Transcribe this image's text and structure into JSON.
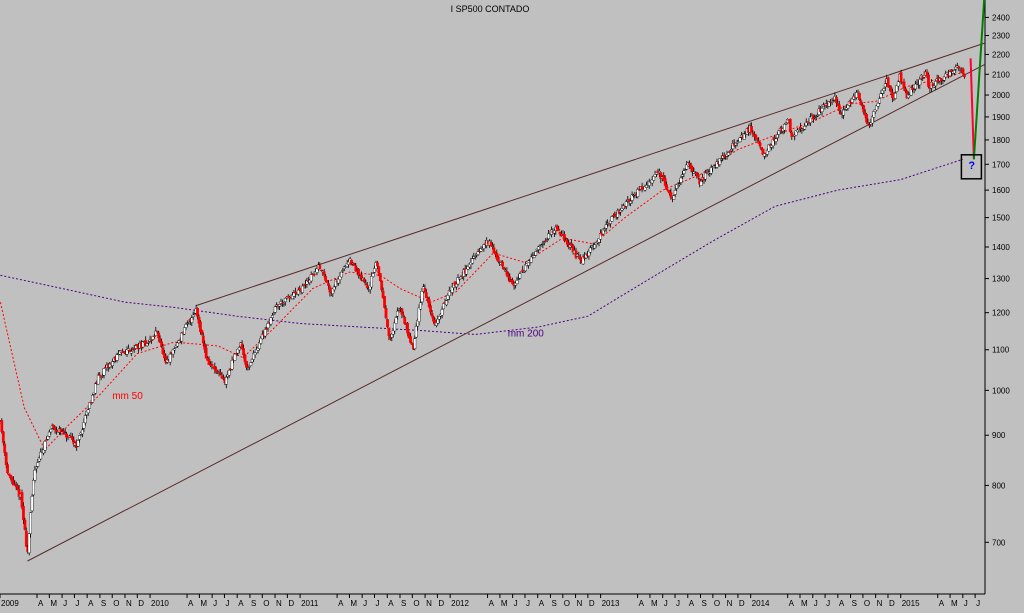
{
  "colors": {
    "background": "#c0c0c0",
    "axis": "#000000",
    "up_candle": "#ffffff",
    "down_candle": "#ff0000",
    "wick": "#000000",
    "trendline": "#5a2a2a",
    "ma50": "#ff0000",
    "ma200": "#4b0082",
    "projection_down": "#ff0033",
    "projection_up": "#008000",
    "question_box": "#000000",
    "question_mark": "#0000ff"
  },
  "chart_data": {
    "type": "candlestick",
    "title": "I SP500 CONTADO",
    "scale": "log",
    "ylim": [
      620,
      2500
    ],
    "x_range": [
      "2009-01",
      "2015-07"
    ],
    "y_ticks": [
      700,
      800,
      900,
      1000,
      1100,
      1200,
      1300,
      1400,
      1500,
      1600,
      1700,
      1800,
      1900,
      2000,
      2100,
      2200,
      2300,
      2400
    ],
    "x_ticks": [
      {
        "date": "2009-01",
        "label": "2009"
      },
      {
        "date": "2009-04",
        "label": "A"
      },
      {
        "date": "2009-05",
        "label": "M"
      },
      {
        "date": "2009-06",
        "label": "J"
      },
      {
        "date": "2009-07",
        "label": "J"
      },
      {
        "date": "2009-08",
        "label": "A"
      },
      {
        "date": "2009-09",
        "label": "S"
      },
      {
        "date": "2009-10",
        "label": "O"
      },
      {
        "date": "2009-11",
        "label": "N"
      },
      {
        "date": "2009-12",
        "label": "D"
      },
      {
        "date": "2010-01",
        "label": "2010"
      },
      {
        "date": "2010-04",
        "label": "A"
      },
      {
        "date": "2010-05",
        "label": "M"
      },
      {
        "date": "2010-06",
        "label": "J"
      },
      {
        "date": "2010-07",
        "label": "J"
      },
      {
        "date": "2010-08",
        "label": "A"
      },
      {
        "date": "2010-09",
        "label": "S"
      },
      {
        "date": "2010-10",
        "label": "O"
      },
      {
        "date": "2010-11",
        "label": "N"
      },
      {
        "date": "2010-12",
        "label": "D"
      },
      {
        "date": "2011-01",
        "label": "2011"
      },
      {
        "date": "2011-04",
        "label": "A"
      },
      {
        "date": "2011-05",
        "label": "M"
      },
      {
        "date": "2011-06",
        "label": "J"
      },
      {
        "date": "2011-07",
        "label": "J"
      },
      {
        "date": "2011-08",
        "label": "A"
      },
      {
        "date": "2011-09",
        "label": "S"
      },
      {
        "date": "2011-10",
        "label": "O"
      },
      {
        "date": "2011-11",
        "label": "N"
      },
      {
        "date": "2011-12",
        "label": "D"
      },
      {
        "date": "2012-01",
        "label": "2012"
      },
      {
        "date": "2012-04",
        "label": "A"
      },
      {
        "date": "2012-05",
        "label": "M"
      },
      {
        "date": "2012-06",
        "label": "J"
      },
      {
        "date": "2012-07",
        "label": "J"
      },
      {
        "date": "2012-08",
        "label": "A"
      },
      {
        "date": "2012-09",
        "label": "S"
      },
      {
        "date": "2012-10",
        "label": "O"
      },
      {
        "date": "2012-11",
        "label": "N"
      },
      {
        "date": "2012-12",
        "label": "D"
      },
      {
        "date": "2013-01",
        "label": "2013"
      },
      {
        "date": "2013-04",
        "label": "A"
      },
      {
        "date": "2013-05",
        "label": "M"
      },
      {
        "date": "2013-06",
        "label": "J"
      },
      {
        "date": "2013-07",
        "label": "J"
      },
      {
        "date": "2013-08",
        "label": "A"
      },
      {
        "date": "2013-09",
        "label": "S"
      },
      {
        "date": "2013-10",
        "label": "O"
      },
      {
        "date": "2013-11",
        "label": "N"
      },
      {
        "date": "2013-12",
        "label": "D"
      },
      {
        "date": "2014-01",
        "label": "2014"
      },
      {
        "date": "2014-04",
        "label": "A"
      },
      {
        "date": "2014-05",
        "label": "M"
      },
      {
        "date": "2014-06",
        "label": "J"
      },
      {
        "date": "2014-07",
        "label": "J"
      },
      {
        "date": "2014-08",
        "label": "A"
      },
      {
        "date": "2014-09",
        "label": "S"
      },
      {
        "date": "2014-10",
        "label": "O"
      },
      {
        "date": "2014-11",
        "label": "N"
      },
      {
        "date": "2014-12",
        "label": "D"
      },
      {
        "date": "2015-01",
        "label": "2015"
      },
      {
        "date": "2015-04",
        "label": "A"
      },
      {
        "date": "2015-05",
        "label": "M"
      },
      {
        "date": "2015-06",
        "label": "J"
      },
      {
        "date": "2015-07",
        "label": "J"
      }
    ],
    "price_path": [
      [
        "2009-01-02",
        930
      ],
      [
        "2009-01-20",
        820
      ],
      [
        "2009-02-20",
        780
      ],
      [
        "2009-03-09",
        680
      ],
      [
        "2009-03-26",
        830
      ],
      [
        "2009-05-08",
        920
      ],
      [
        "2009-07-08",
        880
      ],
      [
        "2009-08-28",
        1030
      ],
      [
        "2009-10-19",
        1090
      ],
      [
        "2009-12-31",
        1120
      ],
      [
        "2010-01-19",
        1150
      ],
      [
        "2010-02-08",
        1060
      ],
      [
        "2010-04-23",
        1210
      ],
      [
        "2010-05-20",
        1070
      ],
      [
        "2010-07-02",
        1020
      ],
      [
        "2010-08-09",
        1120
      ],
      [
        "2010-08-26",
        1050
      ],
      [
        "2010-11-05",
        1220
      ],
      [
        "2010-12-31",
        1260
      ],
      [
        "2011-02-18",
        1340
      ],
      [
        "2011-03-16",
        1260
      ],
      [
        "2011-04-29",
        1360
      ],
      [
        "2011-06-16",
        1270
      ],
      [
        "2011-07-07",
        1350
      ],
      [
        "2011-08-08",
        1120
      ],
      [
        "2011-08-31",
        1220
      ],
      [
        "2011-10-03",
        1100
      ],
      [
        "2011-10-27",
        1280
      ],
      [
        "2011-11-25",
        1160
      ],
      [
        "2011-12-30",
        1260
      ],
      [
        "2012-04-02",
        1420
      ],
      [
        "2012-06-01",
        1280
      ],
      [
        "2012-09-14",
        1470
      ],
      [
        "2012-11-15",
        1350
      ],
      [
        "2013-01-31",
        1500
      ],
      [
        "2013-05-21",
        1670
      ],
      [
        "2013-06-24",
        1570
      ],
      [
        "2013-08-02",
        1710
      ],
      [
        "2013-08-30",
        1630
      ],
      [
        "2013-12-31",
        1850
      ],
      [
        "2014-02-03",
        1740
      ],
      [
        "2014-04-02",
        1890
      ],
      [
        "2014-04-11",
        1810
      ],
      [
        "2014-07-24",
        1990
      ],
      [
        "2014-08-07",
        1910
      ],
      [
        "2014-09-18",
        2010
      ],
      [
        "2014-10-15",
        1860
      ],
      [
        "2014-11-28",
        2070
      ],
      [
        "2014-12-16",
        1980
      ],
      [
        "2014-12-29",
        2090
      ],
      [
        "2015-01-15",
        1990
      ],
      [
        "2015-03-02",
        2110
      ],
      [
        "2015-03-11",
        2040
      ],
      [
        "2015-05-20",
        2130
      ],
      [
        "2015-06-08",
        2080
      ]
    ],
    "ma50": [
      [
        "2009-01-02",
        1230
      ],
      [
        "2009-03-01",
        960
      ],
      [
        "2009-04-20",
        870
      ],
      [
        "2009-06-15",
        920
      ],
      [
        "2009-09-01",
        990
      ],
      [
        "2009-12-01",
        1090
      ],
      [
        "2010-03-01",
        1120
      ],
      [
        "2010-06-15",
        1110
      ],
      [
        "2010-08-15",
        1080
      ],
      [
        "2010-11-01",
        1160
      ],
      [
        "2011-02-01",
        1270
      ],
      [
        "2011-05-01",
        1320
      ],
      [
        "2011-07-15",
        1310
      ],
      [
        "2011-09-01",
        1270
      ],
      [
        "2011-11-15",
        1230
      ],
      [
        "2012-01-15",
        1260
      ],
      [
        "2012-04-15",
        1380
      ],
      [
        "2012-07-01",
        1350
      ],
      [
        "2012-10-01",
        1430
      ],
      [
        "2012-12-15",
        1410
      ],
      [
        "2013-03-01",
        1500
      ],
      [
        "2013-06-01",
        1600
      ],
      [
        "2013-09-01",
        1660
      ],
      [
        "2013-12-01",
        1760
      ],
      [
        "2014-03-01",
        1820
      ],
      [
        "2014-06-01",
        1880
      ],
      [
        "2014-09-01",
        1960
      ],
      [
        "2014-11-01",
        1970
      ],
      [
        "2015-01-15",
        2040
      ],
      [
        "2015-05-01",
        2090
      ],
      [
        "2015-06-01",
        2110
      ]
    ],
    "ma200": [
      [
        "2009-01-02",
        1310
      ],
      [
        "2009-06-01",
        1270
      ],
      [
        "2009-11-01",
        1230
      ],
      [
        "2010-03-01",
        1215
      ],
      [
        "2010-08-01",
        1190
      ],
      [
        "2011-01-01",
        1170
      ],
      [
        "2011-06-01",
        1160
      ],
      [
        "2011-11-01",
        1150
      ],
      [
        "2012-03-01",
        1140
      ],
      [
        "2012-08-01",
        1160
      ],
      [
        "2012-12-01",
        1190
      ],
      [
        "2013-05-01",
        1300
      ],
      [
        "2013-10-01",
        1420
      ],
      [
        "2014-03-01",
        1540
      ],
      [
        "2014-08-01",
        1600
      ],
      [
        "2015-01-01",
        1640
      ],
      [
        "2015-06-01",
        1720
      ]
    ],
    "trendlines": [
      {
        "from": [
          "2010-04-23",
          1220
        ],
        "to": [
          "2015-07-25",
          2260
        ]
      },
      {
        "from": [
          "2009-03-09",
          670
        ],
        "to": [
          "2015-07-25",
          2150
        ]
      }
    ],
    "projections": [
      {
        "role": "down",
        "from": [
          "2015-06-20",
          2180
        ],
        "to": [
          "2015-06-28",
          1720
        ]
      },
      {
        "role": "up",
        "from": [
          "2015-06-28",
          1720
        ],
        "to": [
          "2015-07-25",
          2580
        ]
      }
    ],
    "question_box": {
      "date": "2015-06-22",
      "value": 1690,
      "label": "?"
    },
    "annotations": [
      {
        "text": "mm 50",
        "date": "2009-10-01",
        "value": 980,
        "color": "#ff0000"
      },
      {
        "text": "mm 200",
        "date": "2012-05-20",
        "value": 1135,
        "color": "#4b0082"
      }
    ]
  }
}
